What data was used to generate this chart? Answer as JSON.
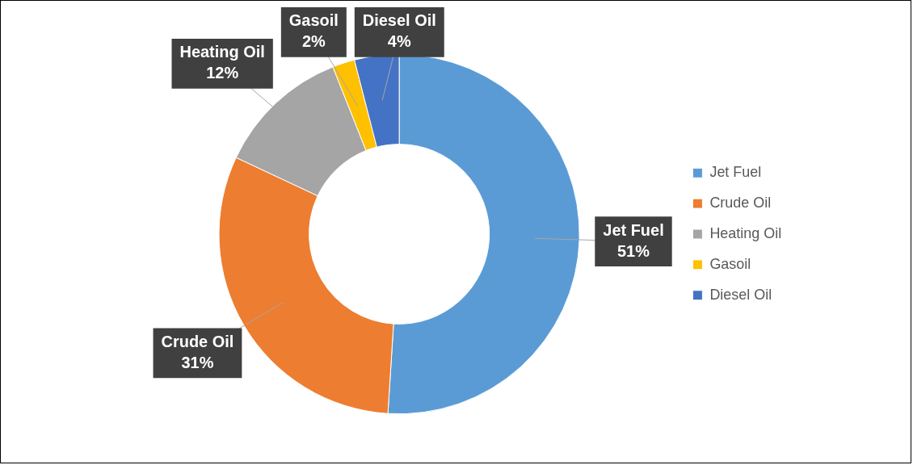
{
  "chart_data": {
    "type": "donut",
    "categories": [
      "Jet Fuel",
      "Crude Oil",
      "Heating Oil",
      "Gasoil",
      "Diesel Oil"
    ],
    "values": [
      51,
      31,
      12,
      2,
      4
    ],
    "colors": [
      "#5b9bd5",
      "#ed7d31",
      "#a5a5a5",
      "#ffc000",
      "#4472c4"
    ],
    "value_labels": [
      "51%",
      "31%",
      "12%",
      "2%",
      "4%"
    ],
    "legend": "right"
  }
}
